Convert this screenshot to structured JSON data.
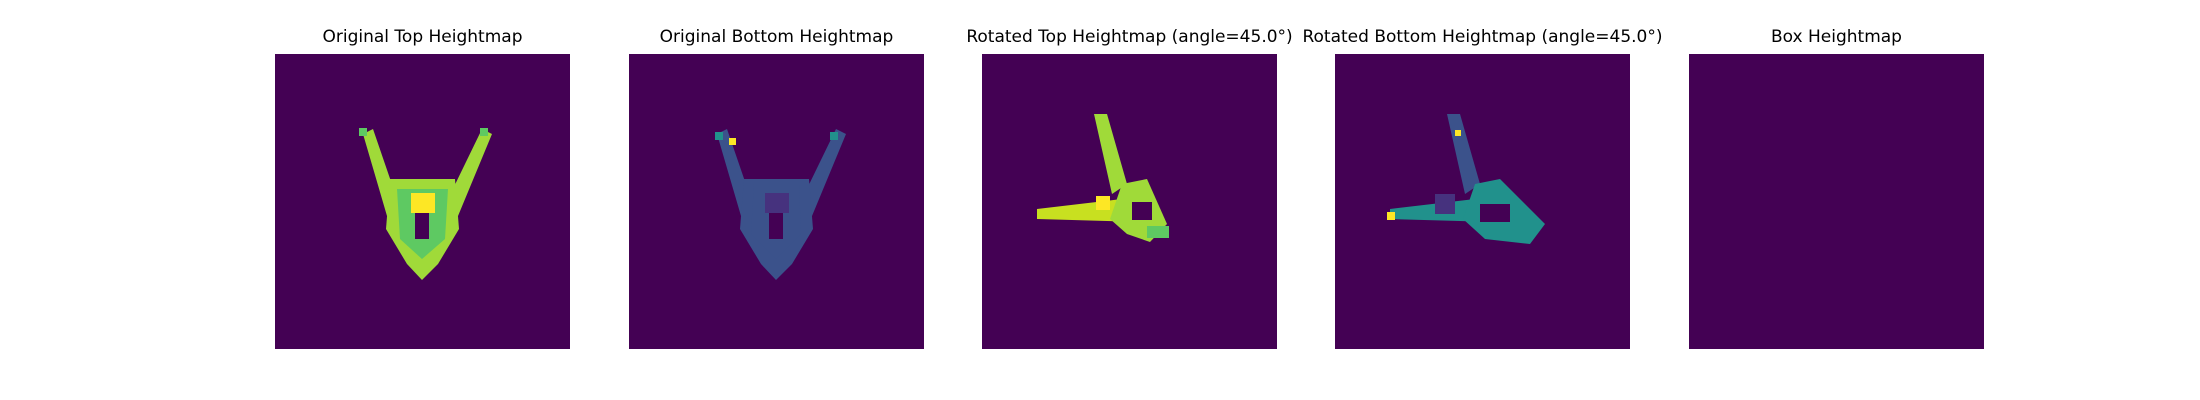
{
  "chart_data": [
    {
      "type": "heatmap",
      "title": "Original Top Heightmap",
      "background": "#440154",
      "colors": [
        "#440154",
        "#3b528b",
        "#21918c",
        "#5ec962",
        "#a0da39",
        "#fde725"
      ]
    },
    {
      "type": "heatmap",
      "title": "Original Bottom Heightmap",
      "background": "#440154",
      "colors": [
        "#440154",
        "#46327e",
        "#3b528b",
        "#2c728e",
        "#21918c",
        "#fde725"
      ]
    },
    {
      "type": "heatmap",
      "title": "Rotated Top Heightmap (angle=45.0°)",
      "background": "#440154",
      "colors": [
        "#440154",
        "#5ec962",
        "#a0da39",
        "#c8e020",
        "#fde725"
      ]
    },
    {
      "type": "heatmap",
      "title": "Rotated Bottom Heightmap (angle=45.0°)",
      "background": "#440154",
      "colors": [
        "#440154",
        "#46327e",
        "#3b528b",
        "#2c728e",
        "#21918c",
        "#fde725"
      ]
    },
    {
      "type": "heatmap",
      "title": "Box Heightmap",
      "background": "#440154",
      "colors": [
        "#440154"
      ]
    }
  ]
}
